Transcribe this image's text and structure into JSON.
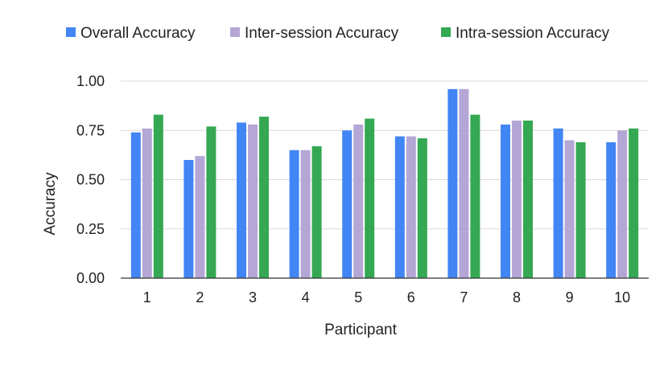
{
  "chart_data": {
    "type": "bar",
    "title": "",
    "xlabel": "Participant",
    "ylabel": "Accuracy",
    "categories": [
      "1",
      "2",
      "3",
      "4",
      "5",
      "6",
      "7",
      "8",
      "9",
      "10"
    ],
    "ylim": [
      0,
      1
    ],
    "yticks": [
      "0.00",
      "0.25",
      "0.50",
      "0.75",
      "1.00"
    ],
    "grid": true,
    "legend_position": "top",
    "series": [
      {
        "name": "Overall Accuracy",
        "color": "#4285f4",
        "values": [
          0.74,
          0.6,
          0.79,
          0.65,
          0.75,
          0.72,
          0.96,
          0.78,
          0.76,
          0.69
        ]
      },
      {
        "name": "Inter-session Accuracy",
        "color": "#b4a7d6",
        "values": [
          0.76,
          0.62,
          0.78,
          0.65,
          0.78,
          0.72,
          0.96,
          0.8,
          0.7,
          0.75
        ]
      },
      {
        "name": "Intra-session Accuracy",
        "color": "#34a853",
        "values": [
          0.83,
          0.77,
          0.82,
          0.67,
          0.81,
          0.71,
          0.83,
          0.8,
          0.69,
          0.76
        ]
      }
    ]
  }
}
